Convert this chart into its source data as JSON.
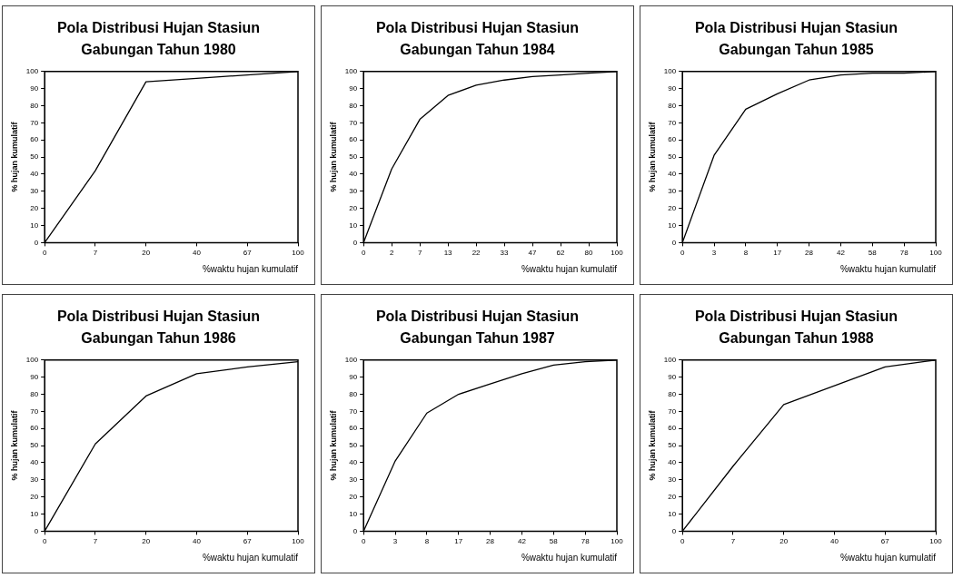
{
  "chart_data": [
    {
      "type": "line",
      "title": "Pola Distribusi Hujan Stasiun Gabungan Tahun 1980",
      "xlabel": "%waktu hujan kumulatif",
      "ylabel": "% hujan kumulatif",
      "categories": [
        "0",
        "7",
        "20",
        "40",
        "67",
        "100"
      ],
      "series": [
        {
          "color": "#000000",
          "values": [
            0,
            42,
            94,
            96,
            98,
            100
          ]
        }
      ],
      "ylim": [
        0,
        100
      ],
      "yticks": [
        0,
        10,
        20,
        30,
        40,
        50,
        60,
        70,
        80,
        90,
        100
      ],
      "grid": false,
      "legend": false,
      "marker": "none",
      "line_style": "solid"
    },
    {
      "type": "line",
      "title": "Pola Distribusi Hujan Stasiun Gabungan Tahun 1984",
      "xlabel": "%waktu hujan kumulatif",
      "ylabel": "% hujan kumulatif",
      "categories": [
        "0",
        "2",
        "7",
        "13",
        "22",
        "33",
        "47",
        "62",
        "80",
        "100"
      ],
      "series": [
        {
          "color": "#000000",
          "values": [
            0,
            43,
            72,
            86,
            92,
            95,
            97,
            98,
            99,
            100
          ]
        }
      ],
      "ylim": [
        0,
        100
      ],
      "yticks": [
        0,
        10,
        20,
        30,
        40,
        50,
        60,
        70,
        80,
        90,
        100
      ],
      "grid": false,
      "legend": false,
      "marker": "none",
      "line_style": "solid"
    },
    {
      "type": "line",
      "title": "Pola Distribusi Hujan Stasiun Gabungan Tahun 1985",
      "xlabel": "%waktu hujan kumulatif",
      "ylabel": "% hujan kumulatif",
      "categories": [
        "0",
        "3",
        "8",
        "17",
        "28",
        "42",
        "58",
        "78",
        "100"
      ],
      "series": [
        {
          "color": "#000000",
          "values": [
            0,
            51,
            78,
            87,
            95,
            98,
            99,
            99,
            100
          ]
        }
      ],
      "ylim": [
        0,
        100
      ],
      "yticks": [
        0,
        10,
        20,
        30,
        40,
        50,
        60,
        70,
        80,
        90,
        100
      ],
      "grid": false,
      "legend": false,
      "marker": "none",
      "line_style": "solid"
    },
    {
      "type": "line",
      "title": "Pola Distribusi Hujan Stasiun Gabungan Tahun 1986",
      "xlabel": "%waktu hujan kumulatif",
      "ylabel": "% hujan kumulatif",
      "categories": [
        "0",
        "7",
        "20",
        "40",
        "67",
        "100"
      ],
      "series": [
        {
          "color": "#000000",
          "values": [
            0,
            51,
            79,
            92,
            96,
            99
          ]
        }
      ],
      "ylim": [
        0,
        100
      ],
      "yticks": [
        0,
        10,
        20,
        30,
        40,
        50,
        60,
        70,
        80,
        90,
        100
      ],
      "grid": false,
      "legend": false,
      "marker": "none",
      "line_style": "solid"
    },
    {
      "type": "line",
      "title": "Pola Distribusi Hujan Stasiun Gabungan Tahun 1987",
      "xlabel": "%waktu hujan kumulatif",
      "ylabel": "% hujan kumulatif",
      "categories": [
        "0",
        "3",
        "8",
        "17",
        "28",
        "42",
        "58",
        "78",
        "100"
      ],
      "series": [
        {
          "color": "#000000",
          "values": [
            0,
            41,
            69,
            80,
            86,
            92,
            97,
            99,
            100
          ]
        }
      ],
      "ylim": [
        0,
        100
      ],
      "yticks": [
        0,
        10,
        20,
        30,
        40,
        50,
        60,
        70,
        80,
        90,
        100
      ],
      "grid": false,
      "legend": false,
      "marker": "none",
      "line_style": "solid"
    },
    {
      "type": "line",
      "title": "Pola Distribusi Hujan Stasiun Gabungan Tahun 1988",
      "xlabel": "%waktu hujan kumulatif",
      "ylabel": "% hujan kumulatif",
      "categories": [
        "0",
        "7",
        "20",
        "40",
        "67",
        "100"
      ],
      "series": [
        {
          "color": "#000000",
          "values": [
            0,
            38,
            74,
            85,
            96,
            100
          ]
        }
      ],
      "ylim": [
        0,
        100
      ],
      "yticks": [
        0,
        10,
        20,
        30,
        40,
        50,
        60,
        70,
        80,
        90,
        100
      ],
      "grid": false,
      "legend": false,
      "marker": "none",
      "line_style": "solid"
    }
  ]
}
